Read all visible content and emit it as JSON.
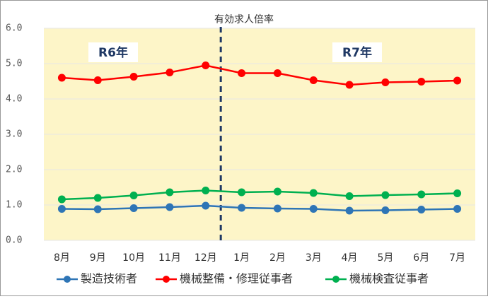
{
  "chart_data": {
    "type": "line",
    "title": "有効求人倍率",
    "categories": [
      "8月",
      "9月",
      "10月",
      "11月",
      "12月",
      "1月",
      "2月",
      "3月",
      "4月",
      "5月",
      "6月",
      "7月"
    ],
    "series": [
      {
        "name": "製造技術者",
        "color": "#2e75b6",
        "values": [
          0.89,
          0.88,
          0.91,
          0.94,
          0.98,
          0.92,
          0.9,
          0.89,
          0.84,
          0.85,
          0.87,
          0.89
        ]
      },
      {
        "name": "機械整備・修理従事者",
        "color": "#ff0000",
        "values": [
          4.6,
          4.53,
          4.63,
          4.75,
          4.95,
          4.73,
          4.73,
          4.53,
          4.4,
          4.47,
          4.49,
          4.52
        ]
      },
      {
        "name": "機械検査従事者",
        "color": "#00b050",
        "values": [
          1.16,
          1.2,
          1.27,
          1.36,
          1.41,
          1.36,
          1.38,
          1.34,
          1.25,
          1.28,
          1.3,
          1.33
        ]
      }
    ],
    "ylim": [
      0,
      6
    ],
    "yticks": [
      {
        "value": 0,
        "label": "0.0"
      },
      {
        "value": 1,
        "label": "1.0"
      },
      {
        "value": 2,
        "label": "2.0"
      },
      {
        "value": 3,
        "label": "3.0"
      },
      {
        "value": 4,
        "label": "4.0"
      },
      {
        "value": 5,
        "label": "5.0"
      },
      {
        "value": 6,
        "label": "6.0"
      }
    ],
    "grid": true,
    "annotations": [
      "R6年",
      "R7年"
    ]
  }
}
